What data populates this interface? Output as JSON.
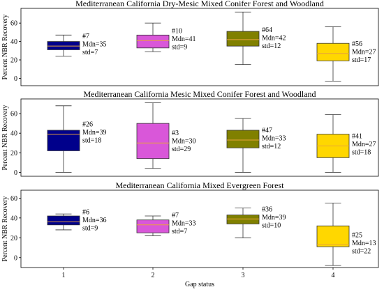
{
  "chart_data": [
    {
      "type": "box",
      "title": "Mediterranean California Dry-Mesic Mixed Conifer Forest and Woodland",
      "ylabel": "Percent NBR Recovery",
      "ylim": [
        -8,
        76
      ],
      "yticks": [
        0,
        20,
        40,
        60
      ],
      "categories": [
        "1",
        "2",
        "3",
        "4"
      ],
      "boxes": [
        {
          "category": "1",
          "color": "#00008b",
          "whisker_low": 24,
          "q1": 31,
          "median": 35,
          "q3": 40,
          "whisker_high": 47,
          "annotation": [
            "#7",
            "Mdn=35",
            "std=7"
          ]
        },
        {
          "category": "2",
          "color": "#d957d9",
          "whisker_low": 29,
          "q1": 33,
          "median": 41,
          "q3": 47,
          "whisker_high": 60,
          "annotation": [
            "#10",
            "Mdn=41",
            "std=9"
          ]
        },
        {
          "category": "3",
          "color": "#808000",
          "whisker_low": 15,
          "q1": 35,
          "median": 42,
          "q3": 51,
          "whisker_high": 72,
          "annotation": [
            "#64",
            "Mdn=42",
            "std=12"
          ]
        },
        {
          "category": "4",
          "color": "#ffd700",
          "whisker_low": -3,
          "q1": 19,
          "median": 27,
          "q3": 38,
          "whisker_high": 56,
          "annotation": [
            "#56",
            "Mdn=27",
            "std=17"
          ]
        }
      ]
    },
    {
      "type": "box",
      "title": "Mediterranean California Mesic Mixed Conifer Forest and Woodland",
      "ylabel": "Percent NBR Recovery",
      "ylim": [
        -4,
        75
      ],
      "yticks": [
        0,
        20,
        40,
        60
      ],
      "categories": [
        "1",
        "2",
        "3",
        "4"
      ],
      "boxes": [
        {
          "category": "1",
          "color": "#00008b",
          "whisker_low": 0,
          "q1": 22,
          "median": 39,
          "q3": 43,
          "whisker_high": 68,
          "annotation": [
            "#26",
            "Mdn=39",
            "std=18"
          ]
        },
        {
          "category": "2",
          "color": "#d957d9",
          "whisker_low": 4,
          "q1": 14,
          "median": 30,
          "q3": 50,
          "whisker_high": 71,
          "annotation": [
            "#3",
            "Mdn=30",
            "std=29"
          ]
        },
        {
          "category": "3",
          "color": "#808000",
          "whisker_low": 0,
          "q1": 25,
          "median": 33,
          "q3": 43,
          "whisker_high": 55,
          "annotation": [
            "#47",
            "Mdn=33",
            "std=12"
          ]
        },
        {
          "category": "4",
          "color": "#ffd700",
          "whisker_low": 0,
          "q1": 15,
          "median": 27,
          "q3": 39,
          "whisker_high": 59,
          "annotation": [
            "#41",
            "Mdn=27",
            "std=18"
          ]
        }
      ]
    },
    {
      "type": "box",
      "title": "Mediterranean California Mixed Evergreen Forest",
      "ylabel": "Percent NBR Recovery",
      "xlabel": "Gap status",
      "ylim": [
        -10,
        68
      ],
      "yticks": [
        0,
        20,
        40,
        60
      ],
      "categories": [
        "1",
        "2",
        "3",
        "4"
      ],
      "boxes": [
        {
          "category": "1",
          "color": "#00008b",
          "whisker_low": 28,
          "q1": 33,
          "median": 36,
          "q3": 42,
          "whisker_high": 44,
          "annotation": [
            "#6",
            "Mdn=36",
            "std=9"
          ]
        },
        {
          "category": "2",
          "color": "#d957d9",
          "whisker_low": 22,
          "q1": 25,
          "median": 33,
          "q3": 38,
          "whisker_high": 42,
          "annotation": [
            "#7",
            "Mdn=33",
            "std=7"
          ]
        },
        {
          "category": "3",
          "color": "#808000",
          "whisker_low": 20,
          "q1": 34,
          "median": 39,
          "q3": 43,
          "whisker_high": 50,
          "annotation": [
            "#36",
            "Mdn=39",
            "std=10"
          ]
        },
        {
          "category": "4",
          "color": "#ffd700",
          "whisker_low": -8,
          "q1": 11,
          "median": 13,
          "q3": 32,
          "whisker_high": 55,
          "annotation": [
            "#25",
            "Mdn=13",
            "std=22"
          ]
        }
      ]
    }
  ]
}
